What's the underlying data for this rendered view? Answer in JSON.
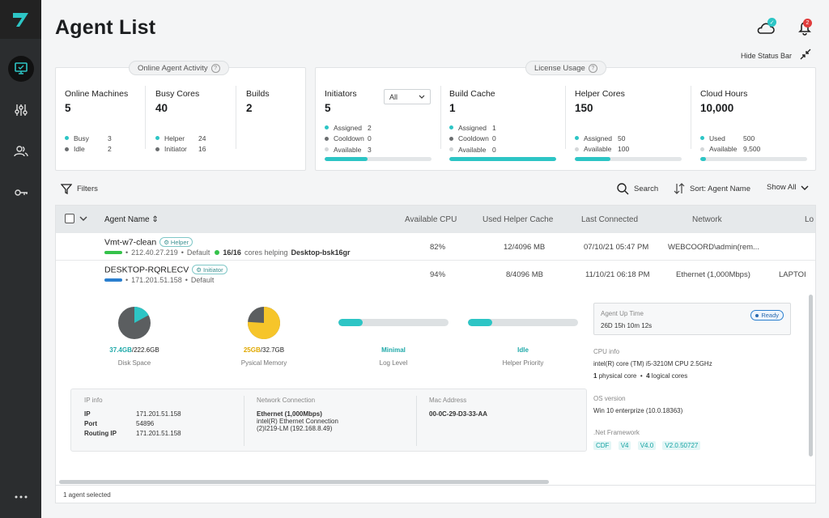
{
  "header": {
    "title": "Agent List",
    "notification_count": "2",
    "hide_status_label": "Hide Status Bar"
  },
  "online_panel": {
    "label": "Online Agent Activity",
    "machines": {
      "title": "Online Machines",
      "value": "5",
      "legend": [
        {
          "label": "Busy",
          "value": "3",
          "color": "#2dc5c5"
        },
        {
          "label": "Idle",
          "value": "2",
          "color": "#6b6e70"
        }
      ]
    },
    "busy_cores": {
      "title": "Busy Cores",
      "value": "40",
      "legend": [
        {
          "label": "Helper",
          "value": "24",
          "color": "#2dc5c5"
        },
        {
          "label": "Initiator",
          "value": "16",
          "color": "#6b6e70"
        }
      ]
    },
    "builds": {
      "title": "Builds",
      "value": "2"
    }
  },
  "license_panel": {
    "label": "License Usage",
    "initiators": {
      "title": "Initiators",
      "value": "5",
      "filter": "All",
      "legend": [
        {
          "label": "Assigned",
          "value": "2",
          "color": "#2dc5c5"
        },
        {
          "label": "Cooldown",
          "value": "0",
          "color": "#6b6e70"
        },
        {
          "label": "Available",
          "value": "3",
          "color": "#d4d7d9"
        }
      ],
      "fill": 0.4
    },
    "build_cache": {
      "title": "Build Cache",
      "value": "1",
      "legend": [
        {
          "label": "Assigned",
          "value": "1",
          "color": "#2dc5c5"
        },
        {
          "label": "Cooldown",
          "value": "0",
          "color": "#6b6e70"
        },
        {
          "label": "Available",
          "value": "0",
          "color": "#d4d7d9"
        }
      ],
      "fill": 1.0
    },
    "helper_cores": {
      "title": "Helper Cores",
      "value": "150",
      "legend": [
        {
          "label": "Assigned",
          "value": "50",
          "color": "#2dc5c5"
        },
        {
          "label": "Available",
          "value": "100",
          "color": "#d4d7d9"
        }
      ],
      "fill": 0.33
    },
    "cloud_hours": {
      "title": "Cloud Hours",
      "value": "10,000",
      "legend": [
        {
          "label": "Used",
          "value": "500",
          "color": "#2dc5c5"
        },
        {
          "label": "Available",
          "value": "9,500",
          "color": "#d4d7d9"
        }
      ],
      "fill": 0.05
    }
  },
  "toolbar": {
    "filters": "Filters",
    "search": "Search",
    "sort": "Sort: Agent Name",
    "show": "Show All"
  },
  "table": {
    "columns": [
      "Agent Name",
      "Available CPU",
      "Used Helper Cache",
      "Last Connected",
      "Network",
      "Lo"
    ],
    "rows": [
      {
        "name": "Vmt-w7-clean",
        "role": "Helper",
        "bar_color": "#35c24b",
        "ip": "212.40.27.219",
        "group": "Default",
        "helping_cores": "16/16",
        "helping_text": "cores helping",
        "helping_target": "Desktop-bsk16gr",
        "cpu": "82%",
        "cache": "12/4096 MB",
        "last": "07/10/21 05:47 PM",
        "network": "WEBCOORD\\admin(rem..."
      },
      {
        "name": "DESKTOP-RQRLECV",
        "role": "Initiator",
        "bar_color": "#2a7fcf",
        "ip": "171.201.51.158",
        "group": "Default",
        "cpu": "94%",
        "cache": "8/4096 MB",
        "last": "11/10/21 06:18 PM",
        "network": "Ethernet (1,000Mbps)",
        "log": "LAPTOI"
      }
    ]
  },
  "details": {
    "disk": {
      "used": "37.4GB",
      "total": "/222.6GB",
      "caption": "Disk Space",
      "fraction": 0.17
    },
    "memory": {
      "used": "25GB",
      "total": "/32.7GB",
      "caption": "Pysical Memory",
      "fraction": 0.76
    },
    "log_level": {
      "value": "Minimal",
      "caption": "Log Level",
      "fraction": 0.22
    },
    "helper_priority": {
      "value": "Idle",
      "caption": "Helper Priority",
      "fraction": 0.22
    },
    "ip_info": {
      "title": "IP info",
      "ip_k": "IP",
      "ip_v": "171.201.51.158",
      "port_k": "Port",
      "port_v": "54896",
      "routing_k": "Routing IP",
      "routing_v": "171.201.51.158"
    },
    "network_connection": {
      "title": "Network Connection",
      "name": "Ethernet (1,000Mbps)",
      "line2": "intel(R) Ethernet Connection",
      "line3": "(2)I219-LM (192.168.8.49)"
    },
    "mac": {
      "title": "Mac Address",
      "value": "00-0C-29-D3-33-AA"
    },
    "uptime": {
      "title": "Agent Up Time",
      "value": "26D 15h 10m 12s",
      "status": "Ready"
    },
    "cpu_info": {
      "title": "CPU info",
      "value": "intel(R) core (TM) i5-3210M CPU 2.5GHz",
      "physical": "1",
      "physical_label": "physical core",
      "logical": "4",
      "logical_label": "logical cores"
    },
    "os": {
      "title": "OS version",
      "value": "Win 10 enterprize (10.0.18363)"
    },
    "net": {
      "title": ".Net Framework",
      "tags": [
        "CDF",
        "V4",
        "V4.0",
        "V2.0.50727"
      ]
    }
  },
  "footer": {
    "selected": "1 agent selected"
  }
}
